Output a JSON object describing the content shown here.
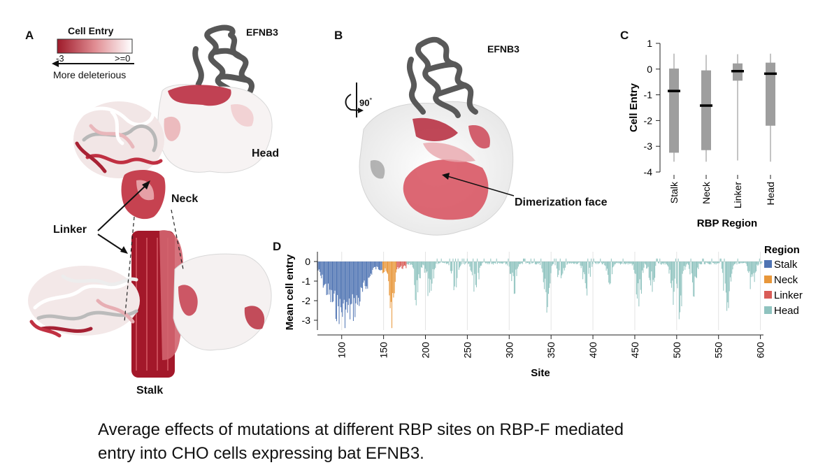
{
  "panels": {
    "a": "A",
    "b": "B",
    "c": "C",
    "d": "D"
  },
  "panel_a": {
    "legend_title": "Cell Entry",
    "legend_min": "-3",
    "legend_max": ">=0",
    "legend_arrow_label": "More deleterious",
    "labels": {
      "efnb3": "EFNB3",
      "head": "Head",
      "neck": "Neck",
      "linker": "Linker",
      "stalk": "Stalk"
    }
  },
  "panel_b": {
    "rotation": "90",
    "rotation_unit": "°",
    "efnb3": "EFNB3",
    "dimerization": "Dimerization face"
  },
  "colors": {
    "stalk": "#4f74b3",
    "neck": "#e8973a",
    "linker": "#d95c57",
    "head": "#8fc3bf",
    "deleterious": "#b01c2e",
    "neutral": "#f4f4f4",
    "efnb3": "#5a5a5a",
    "box": "#9e9e9e"
  },
  "chart_data": [
    {
      "type": "box",
      "panel": "C",
      "title": "",
      "xlabel": "RBP Region",
      "ylabel": "Cell Entry",
      "ylim": [
        -4,
        1
      ],
      "yticks": [
        "1",
        "0",
        "-1",
        "-2",
        "-3",
        "-4"
      ],
      "categories": [
        "Stalk",
        "Neck",
        "Linker",
        "Head"
      ],
      "boxes": [
        {
          "category": "Stalk",
          "min": -3.6,
          "q1": -3.25,
          "median": -0.85,
          "q3": 0.02,
          "max": 0.6
        },
        {
          "category": "Neck",
          "min": -3.6,
          "q1": -3.15,
          "median": -1.42,
          "q3": -0.05,
          "max": 0.55
        },
        {
          "category": "Linker",
          "min": -3.55,
          "q1": -0.45,
          "median": -0.08,
          "q3": 0.22,
          "max": 0.58
        },
        {
          "category": "Head",
          "min": -3.6,
          "q1": -2.2,
          "median": -0.18,
          "q3": 0.25,
          "max": 0.6
        }
      ]
    },
    {
      "type": "bar",
      "panel": "D",
      "xlabel": "Site",
      "ylabel": "Mean cell entry",
      "xlim": [
        71,
        602
      ],
      "ylim": [
        -3.5,
        0.5
      ],
      "xticks": [
        "100",
        "150",
        "200",
        "250",
        "300",
        "350",
        "400",
        "450",
        "500",
        "550",
        "600"
      ],
      "yticks": [
        "0",
        "-1",
        "-2",
        "-3"
      ],
      "legend_title": "Region",
      "legend_position": "right",
      "series": [
        {
          "name": "Stalk",
          "sites": [
            71,
            148
          ]
        },
        {
          "name": "Neck",
          "sites": [
            149,
            165
          ]
        },
        {
          "name": "Linker",
          "sites": [
            166,
            177
          ]
        },
        {
          "name": "Head",
          "sites": [
            178,
            602
          ]
        }
      ],
      "representative_values": {
        "Stalk": [
          -0.4,
          -1.2,
          -1.9,
          -2.6,
          -3.2,
          -2.8,
          -2.1,
          -1.4
        ],
        "Neck": [
          -0.8,
          -2.1,
          -3.3,
          -2.6,
          -1.2
        ],
        "Linker": [
          -0.6,
          -0.3,
          -0.2
        ],
        "Head": [
          -0.5,
          -2.5,
          -3.1,
          -2.9,
          -1.5,
          -0.3
        ]
      }
    }
  ],
  "caption": {
    "line1": "Average effects of mutations at different RBP sites on RBP-F mediated",
    "line2": "entry into CHO cells expressing bat EFNB3."
  }
}
